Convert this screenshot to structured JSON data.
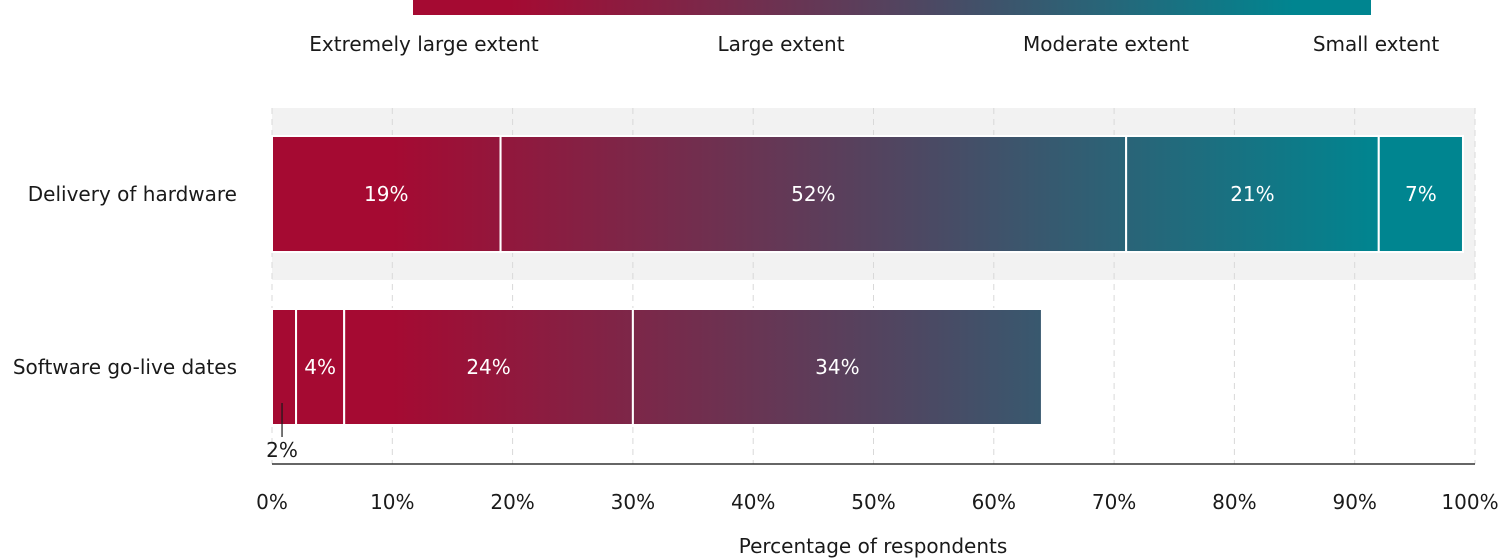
{
  "chart_data": {
    "type": "bar",
    "orientation": "horizontal",
    "stacked": true,
    "categories": [
      "Delivery of hardware",
      "Software go-live dates"
    ],
    "series": [
      {
        "name": "Extremely large extent",
        "values": [
          19,
          2
        ],
        "labels": [
          "19%",
          "2%"
        ]
      },
      {
        "name": "Large extent",
        "values": [
          52,
          4
        ],
        "labels": [
          "52%",
          "4%"
        ]
      },
      {
        "name": "Moderate extent",
        "values": [
          21,
          24
        ],
        "labels": [
          "21%",
          "24%"
        ]
      },
      {
        "name": "Small extent",
        "values": [
          7,
          34
        ],
        "labels": [
          "7%",
          "34%"
        ]
      }
    ],
    "xlabel": "Percentage of respondents",
    "xlim": [
      0,
      100
    ],
    "xticks": [
      "0%",
      "10%",
      "20%",
      "30%",
      "40%",
      "50%",
      "60%",
      "70%",
      "80%",
      "90%",
      "100%"
    ],
    "grid": "vertical dashed",
    "legend": {
      "position": "top",
      "style": "gradient bar",
      "labels": [
        "Extremely large extent",
        "Large extent",
        "Moderate extent",
        "Small extent"
      ]
    },
    "colors": {
      "start": "#a50a32",
      "middle": "#4a4a64",
      "end": "#008590",
      "highlight_band": "#f2f2f2",
      "grid": "#d9d9d9",
      "axis": "#333333"
    }
  }
}
